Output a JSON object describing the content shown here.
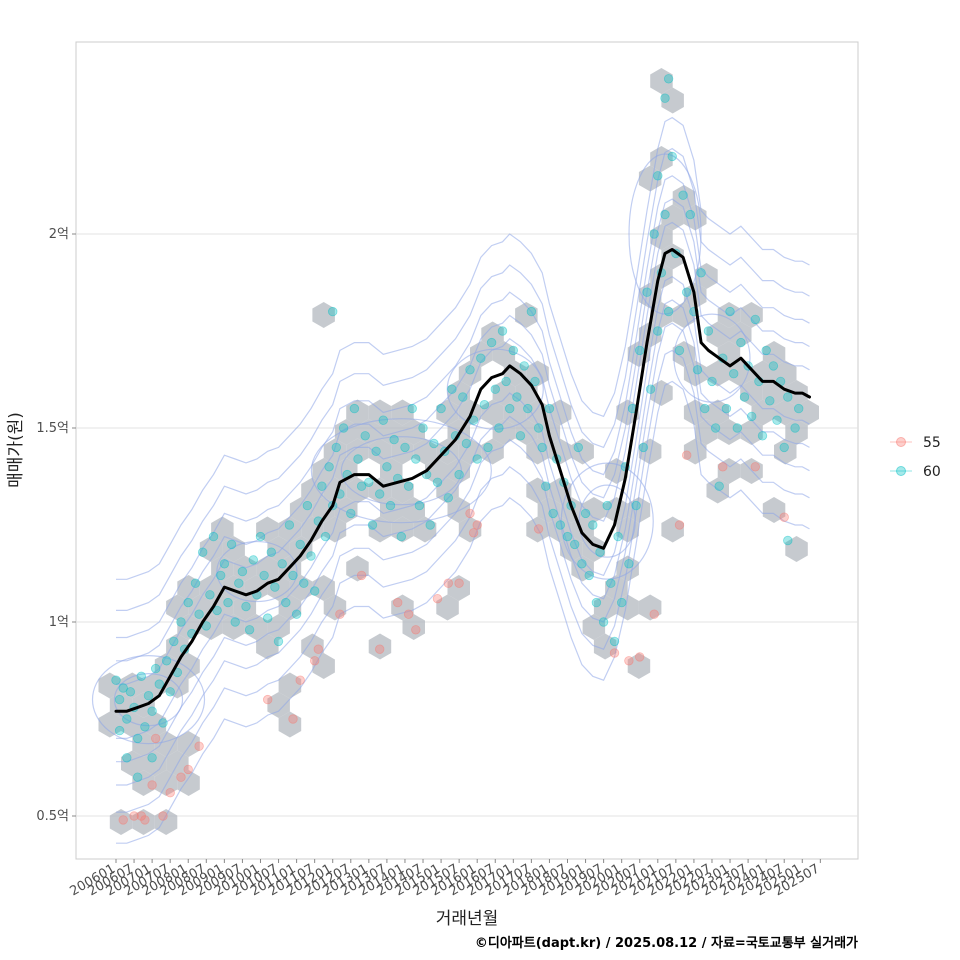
{
  "chart_data": {
    "type": "scatter",
    "xlabel": "거래년월",
    "ylabel": "매매가(원)",
    "caption": "©디아파트(dapt.kr) / 2025.08.12 / 자료=국토교통부 실거래가",
    "x_tick_labels": [
      "200601",
      "200607",
      "200701",
      "200707",
      "200801",
      "200807",
      "200901",
      "200907",
      "201001",
      "201007",
      "201101",
      "201107",
      "201201",
      "201207",
      "201301",
      "201307",
      "201401",
      "201407",
      "201501",
      "201507",
      "201601",
      "201607",
      "201701",
      "201707",
      "201801",
      "201807",
      "201901",
      "201907",
      "202001",
      "202007",
      "202101",
      "202107",
      "202201",
      "202207",
      "202301",
      "202307",
      "202401",
      "202407",
      "202501",
      "202507"
    ],
    "y_ticks": [
      {
        "value": 0.5,
        "label": "0.5억"
      },
      {
        "value": 1.0,
        "label": "1억"
      },
      {
        "value": 1.5,
        "label": "1.5억"
      },
      {
        "value": 2.0,
        "label": "2억"
      }
    ],
    "x_range": [
      2005.75,
      2026.0
    ],
    "ylim": [
      0.39,
      2.49
    ],
    "grid": true,
    "legend": {
      "position": "right",
      "entries": [
        {
          "label": "55",
          "color": "#F8766D"
        },
        {
          "label": "60",
          "color": "#00BFC4"
        }
      ]
    },
    "trend_line": {
      "color": "#000000",
      "points": [
        [
          2006.0,
          0.77
        ],
        [
          2006.3,
          0.77
        ],
        [
          2006.6,
          0.78
        ],
        [
          2006.9,
          0.79
        ],
        [
          2007.2,
          0.81
        ],
        [
          2007.5,
          0.86
        ],
        [
          2007.8,
          0.91
        ],
        [
          2008.1,
          0.95
        ],
        [
          2008.4,
          1.0
        ],
        [
          2008.7,
          1.04
        ],
        [
          2009.0,
          1.09
        ],
        [
          2009.3,
          1.08
        ],
        [
          2009.6,
          1.07
        ],
        [
          2009.9,
          1.08
        ],
        [
          2010.2,
          1.1
        ],
        [
          2010.5,
          1.11
        ],
        [
          2010.8,
          1.14
        ],
        [
          2011.1,
          1.17
        ],
        [
          2011.4,
          1.21
        ],
        [
          2011.7,
          1.26
        ],
        [
          2012.0,
          1.3
        ],
        [
          2012.2,
          1.36
        ],
        [
          2012.6,
          1.38
        ],
        [
          2013.0,
          1.38
        ],
        [
          2013.4,
          1.35
        ],
        [
          2013.8,
          1.36
        ],
        [
          2014.2,
          1.37
        ],
        [
          2014.6,
          1.39
        ],
        [
          2015.0,
          1.43
        ],
        [
          2015.4,
          1.47
        ],
        [
          2015.8,
          1.53
        ],
        [
          2016.1,
          1.6
        ],
        [
          2016.4,
          1.63
        ],
        [
          2016.7,
          1.64
        ],
        [
          2016.9,
          1.66
        ],
        [
          2017.2,
          1.64
        ],
        [
          2017.5,
          1.61
        ],
        [
          2017.8,
          1.56
        ],
        [
          2018.0,
          1.48
        ],
        [
          2018.3,
          1.39
        ],
        [
          2018.6,
          1.3
        ],
        [
          2018.9,
          1.23
        ],
        [
          2019.2,
          1.2
        ],
        [
          2019.5,
          1.19
        ],
        [
          2019.8,
          1.25
        ],
        [
          2020.1,
          1.37
        ],
        [
          2020.4,
          1.54
        ],
        [
          2020.7,
          1.72
        ],
        [
          2021.0,
          1.88
        ],
        [
          2021.2,
          1.95
        ],
        [
          2021.4,
          1.96
        ],
        [
          2021.7,
          1.94
        ],
        [
          2022.0,
          1.85
        ],
        [
          2022.2,
          1.72
        ],
        [
          2022.4,
          1.7
        ],
        [
          2022.7,
          1.68
        ],
        [
          2023.0,
          1.66
        ],
        [
          2023.3,
          1.68
        ],
        [
          2023.6,
          1.65
        ],
        [
          2023.9,
          1.62
        ],
        [
          2024.2,
          1.62
        ],
        [
          2024.5,
          1.6
        ],
        [
          2024.8,
          1.59
        ],
        [
          2025.0,
          1.59
        ],
        [
          2025.2,
          1.58
        ]
      ]
    },
    "series": [
      {
        "name": "55",
        "color": "#F8766D",
        "points": [
          [
            2006.2,
            0.49
          ],
          [
            2006.5,
            0.5
          ],
          [
            2006.7,
            0.5
          ],
          [
            2006.8,
            0.49
          ],
          [
            2007.0,
            0.58
          ],
          [
            2007.3,
            0.5
          ],
          [
            2007.5,
            0.56
          ],
          [
            2007.8,
            0.6
          ],
          [
            2008.0,
            0.62
          ],
          [
            2008.3,
            0.68
          ],
          [
            2007.1,
            0.7
          ],
          [
            2010.2,
            0.8
          ],
          [
            2010.9,
            0.75
          ],
          [
            2011.1,
            0.85
          ],
          [
            2011.5,
            0.9
          ],
          [
            2011.6,
            0.93
          ],
          [
            2012.2,
            1.02
          ],
          [
            2012.8,
            1.12
          ],
          [
            2013.3,
            0.93
          ],
          [
            2013.8,
            1.05
          ],
          [
            2014.1,
            1.02
          ],
          [
            2014.3,
            0.98
          ],
          [
            2014.9,
            1.06
          ],
          [
            2015.2,
            1.1
          ],
          [
            2015.5,
            1.1
          ],
          [
            2015.8,
            1.28
          ],
          [
            2015.9,
            1.23
          ],
          [
            2016.0,
            1.25
          ],
          [
            2017.7,
            1.24
          ],
          [
            2019.8,
            0.92
          ],
          [
            2020.2,
            0.9
          ],
          [
            2020.5,
            0.91
          ],
          [
            2020.9,
            1.02
          ],
          [
            2021.6,
            1.25
          ],
          [
            2021.8,
            1.43
          ],
          [
            2022.8,
            1.4
          ],
          [
            2023.7,
            1.4
          ],
          [
            2024.5,
            1.27
          ]
        ]
      },
      {
        "name": "60",
        "color": "#00BFC4",
        "points": [
          [
            2006.0,
            0.85
          ],
          [
            2006.1,
            0.8
          ],
          [
            2006.1,
            0.72
          ],
          [
            2006.2,
            0.83
          ],
          [
            2006.3,
            0.75
          ],
          [
            2006.3,
            0.65
          ],
          [
            2006.4,
            0.82
          ],
          [
            2006.5,
            0.78
          ],
          [
            2006.6,
            0.7
          ],
          [
            2006.6,
            0.6
          ],
          [
            2006.7,
            0.86
          ],
          [
            2006.8,
            0.73
          ],
          [
            2006.9,
            0.81
          ],
          [
            2007.0,
            0.77
          ],
          [
            2007.0,
            0.65
          ],
          [
            2007.1,
            0.88
          ],
          [
            2007.2,
            0.84
          ],
          [
            2007.3,
            0.74
          ],
          [
            2007.4,
            0.9
          ],
          [
            2007.5,
            0.82
          ],
          [
            2007.6,
            0.95
          ],
          [
            2007.7,
            0.87
          ],
          [
            2007.8,
            1.0
          ],
          [
            2007.9,
            0.93
          ],
          [
            2008.0,
            1.05
          ],
          [
            2008.1,
            0.97
          ],
          [
            2008.2,
            1.1
          ],
          [
            2008.3,
            1.02
          ],
          [
            2008.4,
            1.18
          ],
          [
            2008.5,
            0.99
          ],
          [
            2008.6,
            1.07
          ],
          [
            2008.7,
            1.22
          ],
          [
            2008.8,
            1.03
          ],
          [
            2008.9,
            1.12
          ],
          [
            2009.0,
            1.15
          ],
          [
            2009.1,
            1.05
          ],
          [
            2009.2,
            1.2
          ],
          [
            2009.3,
            1.0
          ],
          [
            2009.4,
            1.1
          ],
          [
            2009.5,
            1.13
          ],
          [
            2009.6,
            1.04
          ],
          [
            2009.7,
            0.98
          ],
          [
            2009.8,
            1.16
          ],
          [
            2009.9,
            1.07
          ],
          [
            2010.0,
            1.22
          ],
          [
            2010.1,
            1.12
          ],
          [
            2010.2,
            1.01
          ],
          [
            2010.3,
            1.18
          ],
          [
            2010.4,
            1.09
          ],
          [
            2010.5,
            0.95
          ],
          [
            2010.6,
            1.15
          ],
          [
            2010.7,
            1.05
          ],
          [
            2010.8,
            1.25
          ],
          [
            2010.9,
            1.12
          ],
          [
            2011.0,
            1.02
          ],
          [
            2011.1,
            1.2
          ],
          [
            2011.2,
            1.1
          ],
          [
            2011.3,
            1.3
          ],
          [
            2011.4,
            1.17
          ],
          [
            2011.5,
            1.08
          ],
          [
            2011.6,
            1.26
          ],
          [
            2011.7,
            1.35
          ],
          [
            2011.8,
            1.22
          ],
          [
            2011.9,
            1.4
          ],
          [
            2012.0,
            1.3
          ],
          [
            2012.0,
            1.8
          ],
          [
            2012.1,
            1.45
          ],
          [
            2012.2,
            1.33
          ],
          [
            2012.3,
            1.5
          ],
          [
            2012.4,
            1.38
          ],
          [
            2012.5,
            1.28
          ],
          [
            2012.6,
            1.55
          ],
          [
            2012.7,
            1.42
          ],
          [
            2012.8,
            1.35
          ],
          [
            2012.9,
            1.48
          ],
          [
            2013.0,
            1.36
          ],
          [
            2013.1,
            1.25
          ],
          [
            2013.2,
            1.44
          ],
          [
            2013.3,
            1.33
          ],
          [
            2013.4,
            1.52
          ],
          [
            2013.5,
            1.4
          ],
          [
            2013.6,
            1.3
          ],
          [
            2013.7,
            1.47
          ],
          [
            2013.8,
            1.37
          ],
          [
            2013.9,
            1.22
          ],
          [
            2014.0,
            1.45
          ],
          [
            2014.1,
            1.35
          ],
          [
            2014.2,
            1.55
          ],
          [
            2014.3,
            1.42
          ],
          [
            2014.4,
            1.3
          ],
          [
            2014.5,
            1.5
          ],
          [
            2014.6,
            1.38
          ],
          [
            2014.7,
            1.25
          ],
          [
            2014.8,
            1.46
          ],
          [
            2014.9,
            1.36
          ],
          [
            2015.0,
            1.55
          ],
          [
            2015.1,
            1.44
          ],
          [
            2015.2,
            1.32
          ],
          [
            2015.3,
            1.6
          ],
          [
            2015.4,
            1.48
          ],
          [
            2015.5,
            1.38
          ],
          [
            2015.6,
            1.58
          ],
          [
            2015.7,
            1.46
          ],
          [
            2015.8,
            1.65
          ],
          [
            2015.9,
            1.52
          ],
          [
            2016.0,
            1.42
          ],
          [
            2016.1,
            1.68
          ],
          [
            2016.2,
            1.56
          ],
          [
            2016.3,
            1.45
          ],
          [
            2016.4,
            1.72
          ],
          [
            2016.5,
            1.6
          ],
          [
            2016.6,
            1.5
          ],
          [
            2016.7,
            1.75
          ],
          [
            2016.8,
            1.62
          ],
          [
            2016.9,
            1.55
          ],
          [
            2017.0,
            1.7
          ],
          [
            2017.1,
            1.58
          ],
          [
            2017.2,
            1.48
          ],
          [
            2017.3,
            1.66
          ],
          [
            2017.4,
            1.55
          ],
          [
            2017.5,
            1.8
          ],
          [
            2017.6,
            1.62
          ],
          [
            2017.7,
            1.5
          ],
          [
            2017.8,
            1.45
          ],
          [
            2017.9,
            1.35
          ],
          [
            2018.0,
            1.55
          ],
          [
            2018.1,
            1.28
          ],
          [
            2018.2,
            1.42
          ],
          [
            2018.3,
            1.25
          ],
          [
            2018.4,
            1.36
          ],
          [
            2018.5,
            1.22
          ],
          [
            2018.6,
            1.3
          ],
          [
            2018.7,
            1.2
          ],
          [
            2018.8,
            1.45
          ],
          [
            2018.9,
            1.15
          ],
          [
            2019.0,
            1.28
          ],
          [
            2019.1,
            1.12
          ],
          [
            2019.2,
            1.25
          ],
          [
            2019.3,
            1.05
          ],
          [
            2019.4,
            1.18
          ],
          [
            2019.5,
            1.0
          ],
          [
            2019.6,
            1.3
          ],
          [
            2019.7,
            1.1
          ],
          [
            2019.8,
            0.95
          ],
          [
            2019.9,
            1.22
          ],
          [
            2020.0,
            1.05
          ],
          [
            2020.1,
            1.4
          ],
          [
            2020.2,
            1.15
          ],
          [
            2020.3,
            1.55
          ],
          [
            2020.4,
            1.3
          ],
          [
            2020.5,
            1.7
          ],
          [
            2020.6,
            1.45
          ],
          [
            2020.7,
            1.85
          ],
          [
            2020.8,
            1.6
          ],
          [
            2020.9,
            2.0
          ],
          [
            2021.0,
            1.75
          ],
          [
            2021.0,
            2.15
          ],
          [
            2021.1,
            1.9
          ],
          [
            2021.2,
            2.05
          ],
          [
            2021.2,
            2.35
          ],
          [
            2021.3,
            1.8
          ],
          [
            2021.3,
            2.4
          ],
          [
            2021.4,
            2.2
          ],
          [
            2021.5,
            1.95
          ],
          [
            2021.6,
            1.7
          ],
          [
            2021.7,
            2.1
          ],
          [
            2021.8,
            1.85
          ],
          [
            2021.9,
            2.05
          ],
          [
            2022.0,
            1.8
          ],
          [
            2022.1,
            1.65
          ],
          [
            2022.2,
            1.9
          ],
          [
            2022.3,
            1.55
          ],
          [
            2022.4,
            1.75
          ],
          [
            2022.5,
            1.62
          ],
          [
            2022.6,
            1.5
          ],
          [
            2022.7,
            1.35
          ],
          [
            2022.8,
            1.68
          ],
          [
            2022.9,
            1.55
          ],
          [
            2023.0,
            1.8
          ],
          [
            2023.1,
            1.64
          ],
          [
            2023.2,
            1.5
          ],
          [
            2023.3,
            1.72
          ],
          [
            2023.4,
            1.58
          ],
          [
            2023.5,
            1.66
          ],
          [
            2023.6,
            1.53
          ],
          [
            2023.7,
            1.78
          ],
          [
            2023.8,
            1.62
          ],
          [
            2023.9,
            1.48
          ],
          [
            2024.0,
            1.7
          ],
          [
            2024.1,
            1.57
          ],
          [
            2024.2,
            1.66
          ],
          [
            2024.3,
            1.52
          ],
          [
            2024.4,
            1.62
          ],
          [
            2024.5,
            1.45
          ],
          [
            2024.6,
            1.58
          ],
          [
            2024.8,
            1.5
          ],
          [
            2024.9,
            1.55
          ],
          [
            2024.6,
            1.21
          ]
        ]
      }
    ]
  }
}
